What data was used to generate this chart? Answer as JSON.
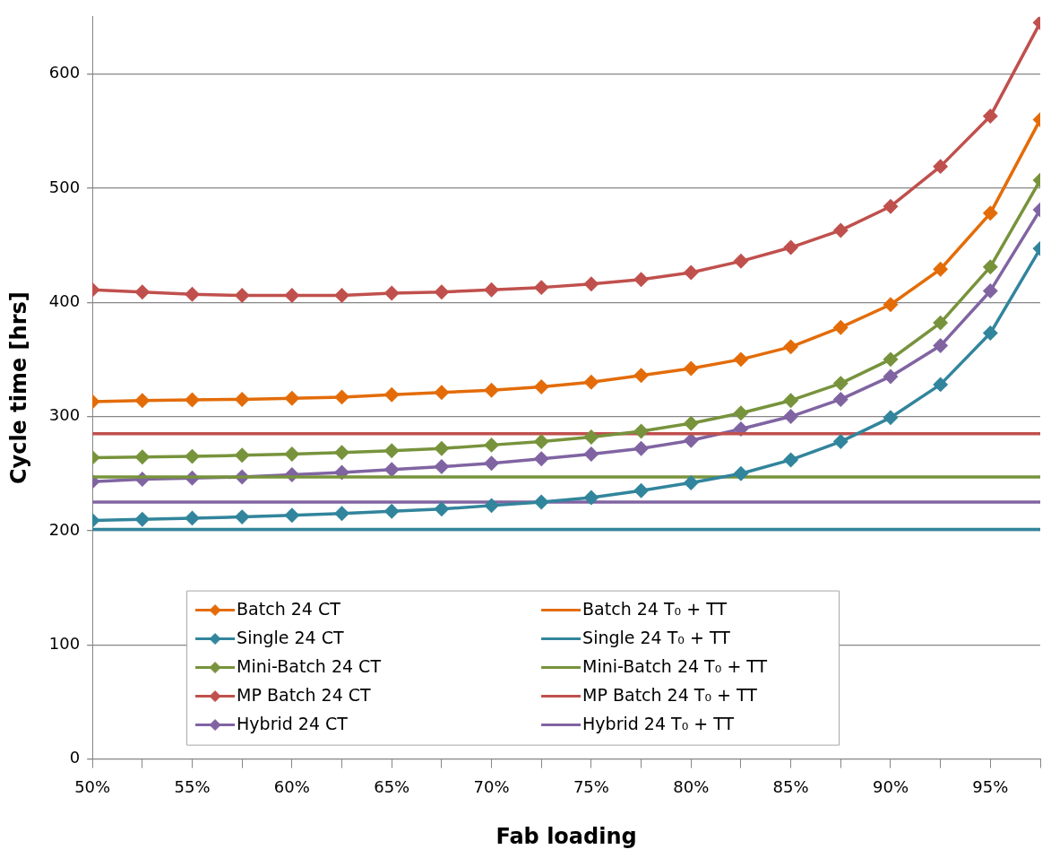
{
  "chart_data": {
    "type": "line",
    "xlabel": "Fab loading",
    "ylabel": "Cycle time [hrs]",
    "x": [
      50,
      52.5,
      55,
      57.5,
      60,
      62.5,
      65,
      67.5,
      70,
      72.5,
      75,
      77.5,
      80,
      82.5,
      85,
      87.5,
      90,
      92.5,
      95,
      97.5
    ],
    "xlim": [
      50,
      97.5
    ],
    "xticks": [
      {
        "value": 50,
        "label": "50%"
      },
      {
        "value": 52.5,
        "label": null
      },
      {
        "value": 55,
        "label": "55%"
      },
      {
        "value": 57.5,
        "label": null
      },
      {
        "value": 60,
        "label": "60%"
      },
      {
        "value": 62.5,
        "label": null
      },
      {
        "value": 65,
        "label": "65%"
      },
      {
        "value": 67.5,
        "label": null
      },
      {
        "value": 70,
        "label": "70%"
      },
      {
        "value": 72.5,
        "label": null
      },
      {
        "value": 75,
        "label": "75%"
      },
      {
        "value": 77.5,
        "label": null
      },
      {
        "value": 80,
        "label": "80%"
      },
      {
        "value": 82.5,
        "label": null
      },
      {
        "value": 85,
        "label": "85%"
      },
      {
        "value": 87.5,
        "label": null
      },
      {
        "value": 90,
        "label": "90%"
      },
      {
        "value": 92.5,
        "label": null
      },
      {
        "value": 95,
        "label": "95%"
      },
      {
        "value": 97.5,
        "label": null
      }
    ],
    "ylim": [
      0,
      650
    ],
    "yticks": [
      0,
      100,
      200,
      300,
      400,
      500,
      600
    ],
    "grid": "y",
    "legend": "bottom",
    "line_style": "solid",
    "series": [
      {
        "name": "Batch 24 CT",
        "color": "#e36c09",
        "marker": "diamond",
        "values": [
          313,
          314,
          314.5,
          315,
          316,
          317,
          319,
          321,
          323,
          326,
          330,
          336,
          342,
          350,
          361,
          378,
          398,
          429,
          478,
          560
        ]
      },
      {
        "name": "Batch 24 T₀ + TT",
        "color": "#e36c09",
        "marker": "none",
        "values": [
          null,
          null,
          null,
          null,
          null,
          null,
          null,
          null,
          null,
          null,
          null,
          null,
          null,
          null,
          null,
          null,
          null,
          null,
          null,
          null
        ]
      },
      {
        "name": "Single 24 CT",
        "color": "#31859c",
        "marker": "diamond",
        "values": [
          209,
          210,
          211,
          212,
          213.5,
          215,
          217,
          219,
          222,
          225,
          229,
          235,
          242,
          250,
          262,
          278,
          299,
          328,
          373,
          447
        ]
      },
      {
        "name": "Single 24 T₀ + TT",
        "color": "#31859c",
        "marker": "none",
        "values": [
          201,
          201,
          201,
          201,
          201,
          201,
          201,
          201,
          201,
          201,
          201,
          201,
          201,
          201,
          201,
          201,
          201,
          201,
          201,
          201
        ]
      },
      {
        "name": "Mini-Batch 24 CT",
        "color": "#77933c",
        "marker": "diamond",
        "values": [
          264,
          264.5,
          265,
          266,
          267,
          268.5,
          270,
          272,
          275,
          278,
          282,
          287,
          294,
          303,
          314,
          329,
          350,
          382,
          431,
          507
        ]
      },
      {
        "name": "Mini-Batch 24 T₀ + TT",
        "color": "#77933c",
        "marker": "none",
        "values": [
          247,
          247,
          247,
          247,
          247,
          247,
          247,
          247,
          247,
          247,
          247,
          247,
          247,
          247,
          247,
          247,
          247,
          247,
          247,
          247
        ]
      },
      {
        "name": "MP Batch 24 CT",
        "color": "#c0504d",
        "marker": "diamond",
        "values": [
          411,
          409,
          407,
          406,
          406,
          406,
          408,
          409,
          411,
          413,
          416,
          420,
          426,
          436,
          448,
          463,
          484,
          519,
          563,
          645
        ]
      },
      {
        "name": "MP Batch 24 T₀ + TT",
        "color": "#c0504d",
        "marker": "none",
        "values": [
          285,
          285,
          285,
          285,
          285,
          285,
          285,
          285,
          285,
          285,
          285,
          285,
          285,
          285,
          285,
          285,
          285,
          285,
          285,
          285
        ]
      },
      {
        "name": "Hybrid 24 CT",
        "color": "#8064a2",
        "marker": "diamond",
        "values": [
          243,
          245,
          246,
          247,
          249,
          251,
          253.5,
          256,
          259,
          263,
          267,
          272,
          279,
          289,
          300,
          315,
          335,
          362,
          410,
          481
        ]
      },
      {
        "name": "Hybrid 24 T₀ + TT",
        "color": "#8064a2",
        "marker": "none",
        "values": [
          225,
          225,
          225,
          225,
          225,
          225,
          225,
          225,
          225,
          225,
          225,
          225,
          225,
          225,
          225,
          225,
          225,
          225,
          225,
          225
        ]
      }
    ]
  }
}
